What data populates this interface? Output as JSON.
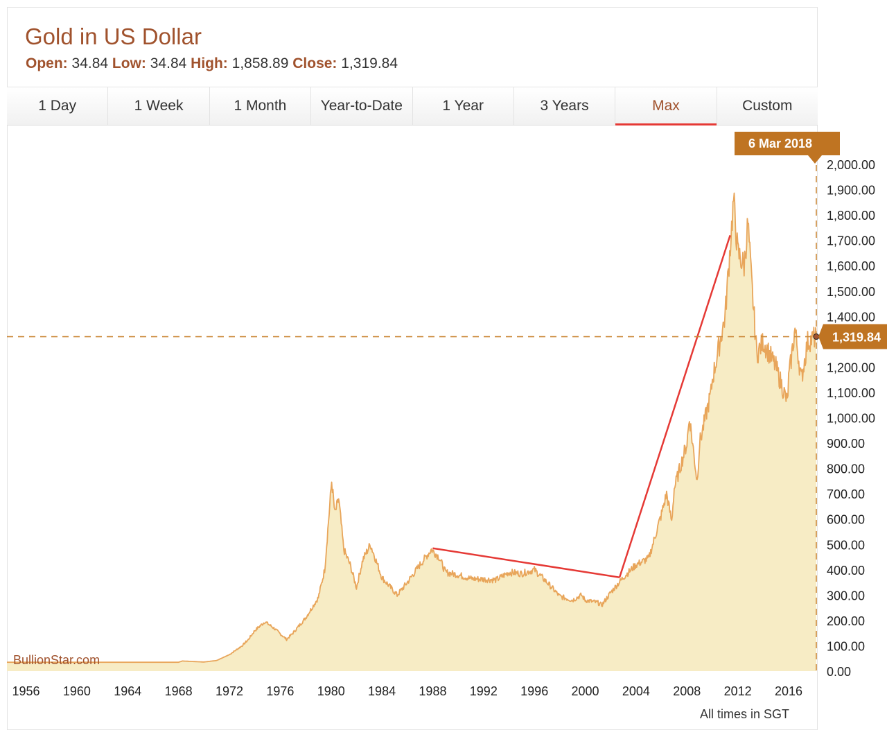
{
  "header": {
    "title": "Gold in US Dollar",
    "open_label": "Open:",
    "open_value": "34.84",
    "low_label": "Low:",
    "low_value": "34.84",
    "high_label": "High:",
    "high_value": "1,858.89",
    "close_label": "Close:",
    "close_value": "1,319.84"
  },
  "tabs": [
    {
      "label": "1 Day"
    },
    {
      "label": "1 Week"
    },
    {
      "label": "1 Month"
    },
    {
      "label": "Year-to-Date"
    },
    {
      "label": "1 Year"
    },
    {
      "label": "3 Years"
    },
    {
      "label": "Max",
      "active": true
    },
    {
      "label": "Custom"
    }
  ],
  "colors": {
    "accent": "#a0522d",
    "line": "#e8a55a",
    "fill": "#f7ecc5",
    "badge": "#bf7422",
    "trend": "#e53935"
  },
  "chart_data": {
    "type": "area",
    "x_unit": "year",
    "xlim": [
      1954.5,
      2018.18
    ],
    "ylim": [
      0,
      2000
    ],
    "x_ticks": [
      "1956",
      "1960",
      "1964",
      "1968",
      "1972",
      "1976",
      "1980",
      "1984",
      "1988",
      "1992",
      "1996",
      "2000",
      "2004",
      "2008",
      "2012",
      "2016"
    ],
    "y_ticks": [
      "0.00",
      "100.00",
      "200.00",
      "300.00",
      "400.00",
      "500.00",
      "600.00",
      "700.00",
      "800.00",
      "900.00",
      "1,000.00",
      "1,100.00",
      "1,200.00",
      "1,300.00",
      "1,400.00",
      "1,500.00",
      "1,600.00",
      "1,700.00",
      "1,800.00",
      "1,900.00",
      "2,000.00"
    ],
    "series": [
      {
        "x": [
          1954.5,
          1968,
          1968.3,
          1970,
          1971,
          1972,
          1973,
          1973.5,
          1974,
          1974.8,
          1975.5,
          1976.5,
          1977,
          1978,
          1979,
          1979.5,
          1980.05,
          1980.3,
          1980.6,
          1981,
          1981.5,
          1982,
          1982.5,
          1983.1,
          1984,
          1985.2,
          1986,
          1987,
          1987.9,
          1988.5,
          1989,
          1990,
          1991,
          1993,
          1994,
          1995,
          1996,
          1997,
          1998,
          1999,
          1999.7,
          2000,
          2001,
          2001.3,
          2002,
          2003,
          2004,
          2005,
          2006,
          2006.4,
          2006.8,
          2007,
          2008,
          2008.2,
          2008.8,
          2009,
          2009.9,
          2010,
          2011,
          2011.67,
          2012,
          2012.5,
          2012.8,
          2013,
          2013.5,
          2014,
          2015,
          2015.9,
          2016,
          2016.5,
          2017,
          2017.5,
          2018.18
        ],
        "y": [
          35,
          35,
          40,
          36,
          42,
          65,
          100,
          125,
          160,
          195,
          170,
          125,
          150,
          210,
          290,
          400,
          750,
          620,
          680,
          480,
          420,
          330,
          440,
          500,
          370,
          300,
          350,
          420,
          480,
          450,
          390,
          380,
          365,
          360,
          390,
          385,
          400,
          350,
          295,
          280,
          300,
          280,
          270,
          260,
          310,
          370,
          420,
          445,
          620,
          700,
          590,
          720,
          900,
          1000,
          750,
          900,
          1100,
          1150,
          1400,
          1858,
          1650,
          1600,
          1770,
          1600,
          1250,
          1300,
          1200,
          1060,
          1150,
          1350,
          1150,
          1300,
          1320
        ]
      }
    ],
    "annotations": {
      "close_label": "1,319.84",
      "date_label": "6 Mar 2018",
      "trend_lines": [
        {
          "x": [
            1988.0,
            2002.7
          ],
          "y": [
            485,
            370
          ]
        },
        {
          "x": [
            2002.7,
            2011.4
          ],
          "y": [
            370,
            1720
          ]
        }
      ]
    },
    "watermark": "BullionStar.com",
    "footnote": "All times in SGT"
  }
}
